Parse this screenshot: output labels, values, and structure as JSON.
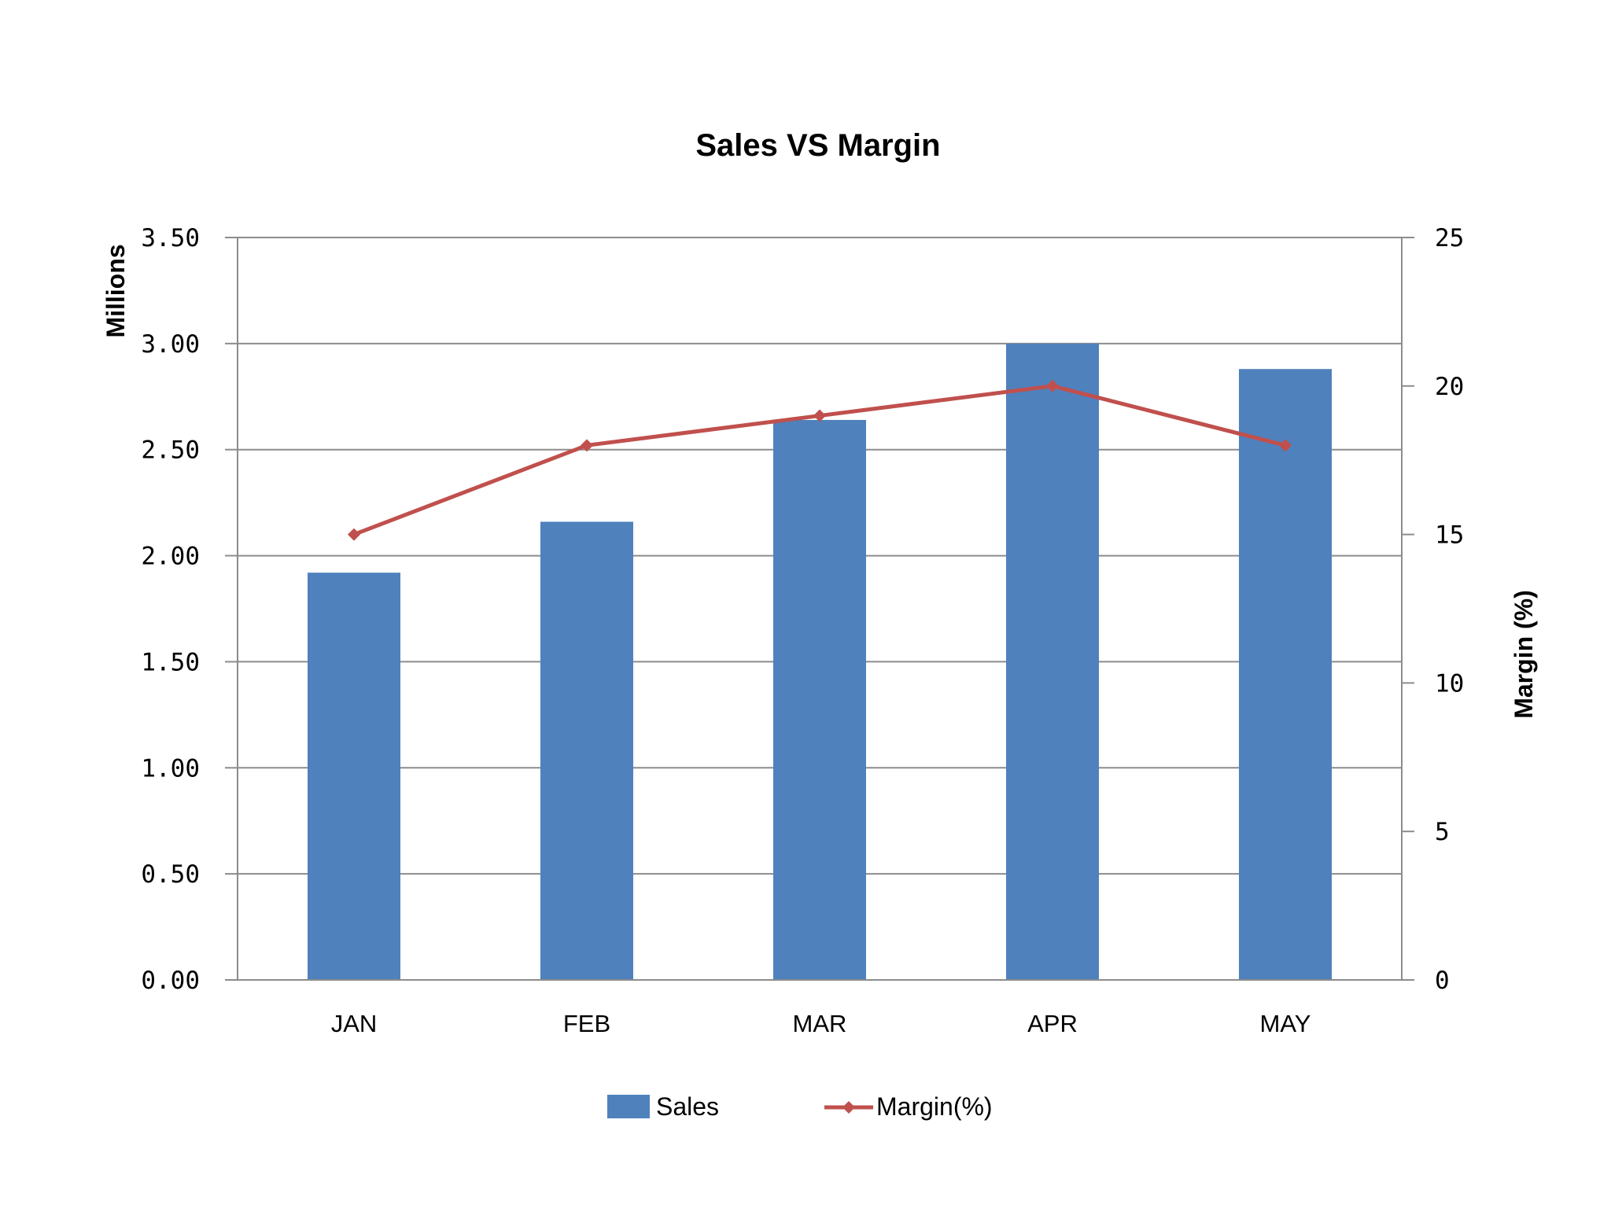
{
  "chart_data": {
    "type": "bar",
    "title": "Sales VS Margin",
    "categories": [
      "JAN",
      "FEB",
      "MAR",
      "APR",
      "MAY"
    ],
    "series": [
      {
        "name": "Sales",
        "type": "bar",
        "axis": "left",
        "values": [
          1.92,
          2.16,
          2.64,
          3.0,
          2.88
        ],
        "color": "#4f81bd"
      },
      {
        "name": "Margin(%)",
        "type": "line",
        "axis": "right",
        "values": [
          15,
          18,
          19,
          20,
          18
        ],
        "color": "#c0504d"
      }
    ],
    "y_left": {
      "label": "Millions",
      "ylim": [
        0,
        3.5
      ],
      "ticks": [
        "0.00",
        "0.50",
        "1.00",
        "1.50",
        "2.00",
        "2.50",
        "3.00",
        "3.50"
      ]
    },
    "y_right": {
      "label": "Margin (%)",
      "ylim": [
        0,
        25
      ],
      "ticks": [
        "0",
        "5",
        "10",
        "15",
        "20",
        "25"
      ]
    },
    "grid": true,
    "legend_position": "bottom"
  }
}
